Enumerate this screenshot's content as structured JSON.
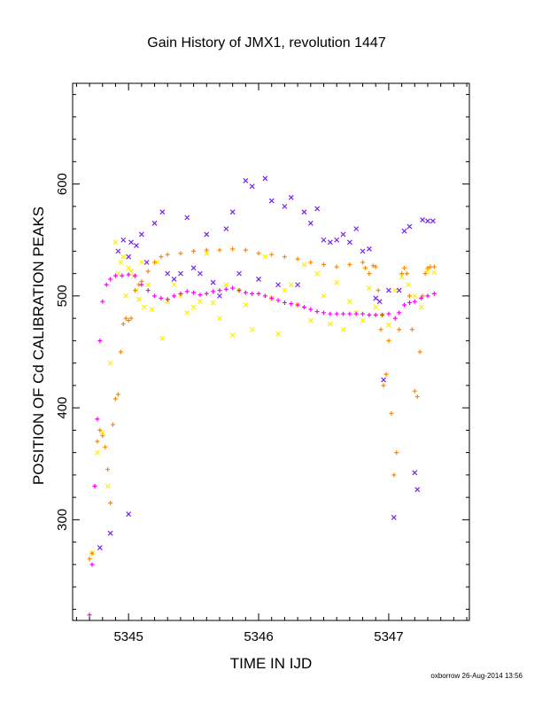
{
  "chart_data": {
    "type": "scatter",
    "title": "Gain History of JMX1, revolution 1447",
    "xlabel": "TIME IN IJD",
    "ylabel": "POSITION OF Cd CALIBRATION PEAKS",
    "footer": "oxborrow 26-Aug-2014 13:56",
    "xlim": [
      5344.57,
      5347.62
    ],
    "ylim": [
      210,
      690
    ],
    "xticks": [
      5345,
      5346,
      5347
    ],
    "xtick_labels": [
      "5345",
      "5346",
      "5347"
    ],
    "yticks": [
      300,
      400,
      500,
      600
    ],
    "ytick_labels": [
      "300",
      "400",
      "500",
      "600"
    ],
    "grid": false,
    "series": [
      {
        "color": "#ffee00",
        "marker": "x",
        "points": [
          [
            5344.72,
            270
          ],
          [
            5344.76,
            360
          ],
          [
            5344.8,
            378
          ],
          [
            5344.84,
            330
          ],
          [
            5344.86,
            440
          ],
          [
            5344.9,
            548
          ],
          [
            5344.92,
            520
          ],
          [
            5344.94,
            530
          ],
          [
            5344.96,
            535
          ],
          [
            5344.98,
            500
          ],
          [
            5345.0,
            525
          ],
          [
            5345.02,
            522
          ],
          [
            5345.04,
            518
          ],
          [
            5345.06,
            505
          ],
          [
            5345.08,
            497
          ],
          [
            5345.1,
            530
          ],
          [
            5345.12,
            490
          ],
          [
            5345.15,
            510
          ],
          [
            5345.18,
            488
          ],
          [
            5345.22,
            530
          ],
          [
            5345.26,
            462
          ],
          [
            5345.3,
            495
          ],
          [
            5345.35,
            510
          ],
          [
            5345.4,
            500
          ],
          [
            5345.45,
            485
          ],
          [
            5345.5,
            490
          ],
          [
            5345.55,
            495
          ],
          [
            5345.6,
            538
          ],
          [
            5345.65,
            494
          ],
          [
            5345.7,
            480
          ],
          [
            5345.75,
            510
          ],
          [
            5345.8,
            465
          ],
          [
            5345.85,
            505
          ],
          [
            5345.9,
            492
          ],
          [
            5345.95,
            470
          ],
          [
            5346.0,
            515
          ],
          [
            5346.05,
            535
          ],
          [
            5346.1,
            498
          ],
          [
            5346.15,
            466
          ],
          [
            5346.2,
            505
          ],
          [
            5346.25,
            510
          ],
          [
            5346.3,
            492
          ],
          [
            5346.35,
            528
          ],
          [
            5346.4,
            478
          ],
          [
            5346.45,
            520
          ],
          [
            5346.5,
            500
          ],
          [
            5346.55,
            475
          ],
          [
            5346.6,
            512
          ],
          [
            5346.65,
            470
          ],
          [
            5346.7,
            495
          ],
          [
            5346.75,
            485
          ],
          [
            5346.8,
            478
          ],
          [
            5346.85,
            507
          ],
          [
            5346.9,
            490
          ],
          [
            5346.95,
            483
          ],
          [
            5347.0,
            474
          ],
          [
            5347.05,
            505
          ],
          [
            5347.1,
            517
          ],
          [
            5347.15,
            510
          ],
          [
            5347.2,
            500
          ],
          [
            5347.25,
            490
          ],
          [
            5347.3,
            522
          ],
          [
            5347.35,
            521
          ]
        ]
      },
      {
        "color": "#ff8800",
        "marker": "+",
        "points": [
          [
            5344.7,
            265
          ],
          [
            5344.72,
            270
          ],
          [
            5344.74,
            330
          ],
          [
            5344.76,
            370
          ],
          [
            5344.78,
            380
          ],
          [
            5344.8,
            375
          ],
          [
            5344.82,
            365
          ],
          [
            5344.84,
            345
          ],
          [
            5344.86,
            315
          ],
          [
            5344.88,
            385
          ],
          [
            5344.9,
            408
          ],
          [
            5344.92,
            412
          ],
          [
            5344.94,
            450
          ],
          [
            5344.96,
            475
          ],
          [
            5344.98,
            480
          ],
          [
            5345.0,
            478
          ],
          [
            5345.02,
            480
          ],
          [
            5345.05,
            505
          ],
          [
            5345.08,
            510
          ],
          [
            5345.1,
            513
          ],
          [
            5345.15,
            522
          ],
          [
            5345.2,
            530
          ],
          [
            5345.25,
            535
          ],
          [
            5345.3,
            537
          ],
          [
            5345.4,
            538
          ],
          [
            5345.5,
            540
          ],
          [
            5345.6,
            541
          ],
          [
            5345.7,
            541
          ],
          [
            5345.8,
            542
          ],
          [
            5345.9,
            541
          ],
          [
            5346.0,
            538
          ],
          [
            5346.1,
            537
          ],
          [
            5346.2,
            535
          ],
          [
            5346.3,
            533
          ],
          [
            5346.4,
            530
          ],
          [
            5346.5,
            528
          ],
          [
            5346.6,
            526
          ],
          [
            5346.7,
            528
          ],
          [
            5346.8,
            530
          ],
          [
            5346.82,
            525
          ],
          [
            5346.85,
            520
          ],
          [
            5346.88,
            527
          ],
          [
            5346.9,
            526
          ],
          [
            5346.92,
            505
          ],
          [
            5346.94,
            470
          ],
          [
            5346.96,
            420
          ],
          [
            5346.98,
            430
          ],
          [
            5347.0,
            460
          ],
          [
            5347.02,
            395
          ],
          [
            5347.04,
            340
          ],
          [
            5347.06,
            360
          ],
          [
            5347.08,
            470
          ],
          [
            5347.1,
            520
          ],
          [
            5347.12,
            525
          ],
          [
            5347.14,
            520
          ],
          [
            5347.16,
            500
          ],
          [
            5347.18,
            470
          ],
          [
            5347.2,
            415
          ],
          [
            5347.22,
            410
          ],
          [
            5347.24,
            450
          ],
          [
            5347.26,
            500
          ],
          [
            5347.28,
            520
          ],
          [
            5347.3,
            525
          ],
          [
            5347.32,
            526
          ],
          [
            5347.35,
            526
          ]
        ]
      },
      {
        "color": "#7722ee",
        "marker": "x",
        "points": [
          [
            5344.78,
            275
          ],
          [
            5344.86,
            288
          ],
          [
            5345.0,
            305
          ],
          [
            5344.92,
            540
          ],
          [
            5344.96,
            550
          ],
          [
            5345.0,
            535
          ],
          [
            5345.02,
            548
          ],
          [
            5345.06,
            545
          ],
          [
            5345.1,
            555
          ],
          [
            5345.14,
            530
          ],
          [
            5345.2,
            565
          ],
          [
            5345.26,
            575
          ],
          [
            5345.3,
            520
          ],
          [
            5345.35,
            515
          ],
          [
            5345.4,
            520
          ],
          [
            5345.45,
            570
          ],
          [
            5345.5,
            525
          ],
          [
            5345.55,
            520
          ],
          [
            5345.6,
            555
          ],
          [
            5345.65,
            512
          ],
          [
            5345.7,
            500
          ],
          [
            5345.75,
            560
          ],
          [
            5345.8,
            575
          ],
          [
            5345.85,
            520
          ],
          [
            5345.9,
            603
          ],
          [
            5345.95,
            598
          ],
          [
            5346.0,
            515
          ],
          [
            5346.05,
            605
          ],
          [
            5346.1,
            585
          ],
          [
            5346.15,
            510
          ],
          [
            5346.2,
            580
          ],
          [
            5346.25,
            588
          ],
          [
            5346.3,
            510
          ],
          [
            5346.35,
            575
          ],
          [
            5346.4,
            565
          ],
          [
            5346.45,
            578
          ],
          [
            5346.5,
            550
          ],
          [
            5346.55,
            548
          ],
          [
            5346.6,
            550
          ],
          [
            5346.65,
            555
          ],
          [
            5346.7,
            548
          ],
          [
            5346.75,
            560
          ],
          [
            5346.8,
            540
          ],
          [
            5346.85,
            542
          ],
          [
            5346.9,
            498
          ],
          [
            5346.93,
            495
          ],
          [
            5346.96,
            425
          ],
          [
            5347.0,
            505
          ],
          [
            5347.04,
            302
          ],
          [
            5347.08,
            505
          ],
          [
            5347.12,
            558
          ],
          [
            5347.16,
            562
          ],
          [
            5347.2,
            342
          ],
          [
            5347.22,
            327
          ],
          [
            5347.26,
            568
          ],
          [
            5347.3,
            567
          ],
          [
            5347.34,
            567
          ]
        ]
      },
      {
        "color": "#ff00ff",
        "marker": "+",
        "points": [
          [
            5344.7,
            215
          ],
          [
            5344.72,
            260
          ],
          [
            5344.74,
            330
          ],
          [
            5344.76,
            390
          ],
          [
            5344.78,
            460
          ],
          [
            5344.8,
            495
          ],
          [
            5344.83,
            510
          ],
          [
            5344.86,
            515
          ],
          [
            5344.9,
            518
          ],
          [
            5344.95,
            518
          ],
          [
            5345.0,
            519
          ],
          [
            5345.05,
            518
          ],
          [
            5345.1,
            510
          ],
          [
            5345.15,
            505
          ],
          [
            5345.2,
            500
          ],
          [
            5345.25,
            498
          ],
          [
            5345.3,
            497
          ],
          [
            5345.35,
            500
          ],
          [
            5345.4,
            502
          ],
          [
            5345.45,
            504
          ],
          [
            5345.5,
            503
          ],
          [
            5345.55,
            501
          ],
          [
            5345.6,
            502
          ],
          [
            5345.65,
            504
          ],
          [
            5345.7,
            505
          ],
          [
            5345.75,
            506
          ],
          [
            5345.8,
            507
          ],
          [
            5345.85,
            505
          ],
          [
            5345.9,
            503
          ],
          [
            5345.95,
            502
          ],
          [
            5346.0,
            502
          ],
          [
            5346.05,
            500
          ],
          [
            5346.1,
            498
          ],
          [
            5346.15,
            496
          ],
          [
            5346.2,
            494
          ],
          [
            5346.25,
            493
          ],
          [
            5346.3,
            492
          ],
          [
            5346.35,
            490
          ],
          [
            5346.4,
            488
          ],
          [
            5346.45,
            486
          ],
          [
            5346.5,
            485
          ],
          [
            5346.55,
            484
          ],
          [
            5346.6,
            484
          ],
          [
            5346.65,
            484
          ],
          [
            5346.7,
            484
          ],
          [
            5346.75,
            484
          ],
          [
            5346.8,
            484
          ],
          [
            5346.85,
            483
          ],
          [
            5346.9,
            483
          ],
          [
            5346.95,
            483
          ],
          [
            5347.0,
            484
          ],
          [
            5347.05,
            480
          ],
          [
            5347.08,
            485
          ],
          [
            5347.12,
            492
          ],
          [
            5347.16,
            494
          ],
          [
            5347.2,
            495
          ],
          [
            5347.25,
            498
          ],
          [
            5347.3,
            500
          ],
          [
            5347.35,
            502
          ]
        ]
      }
    ]
  }
}
